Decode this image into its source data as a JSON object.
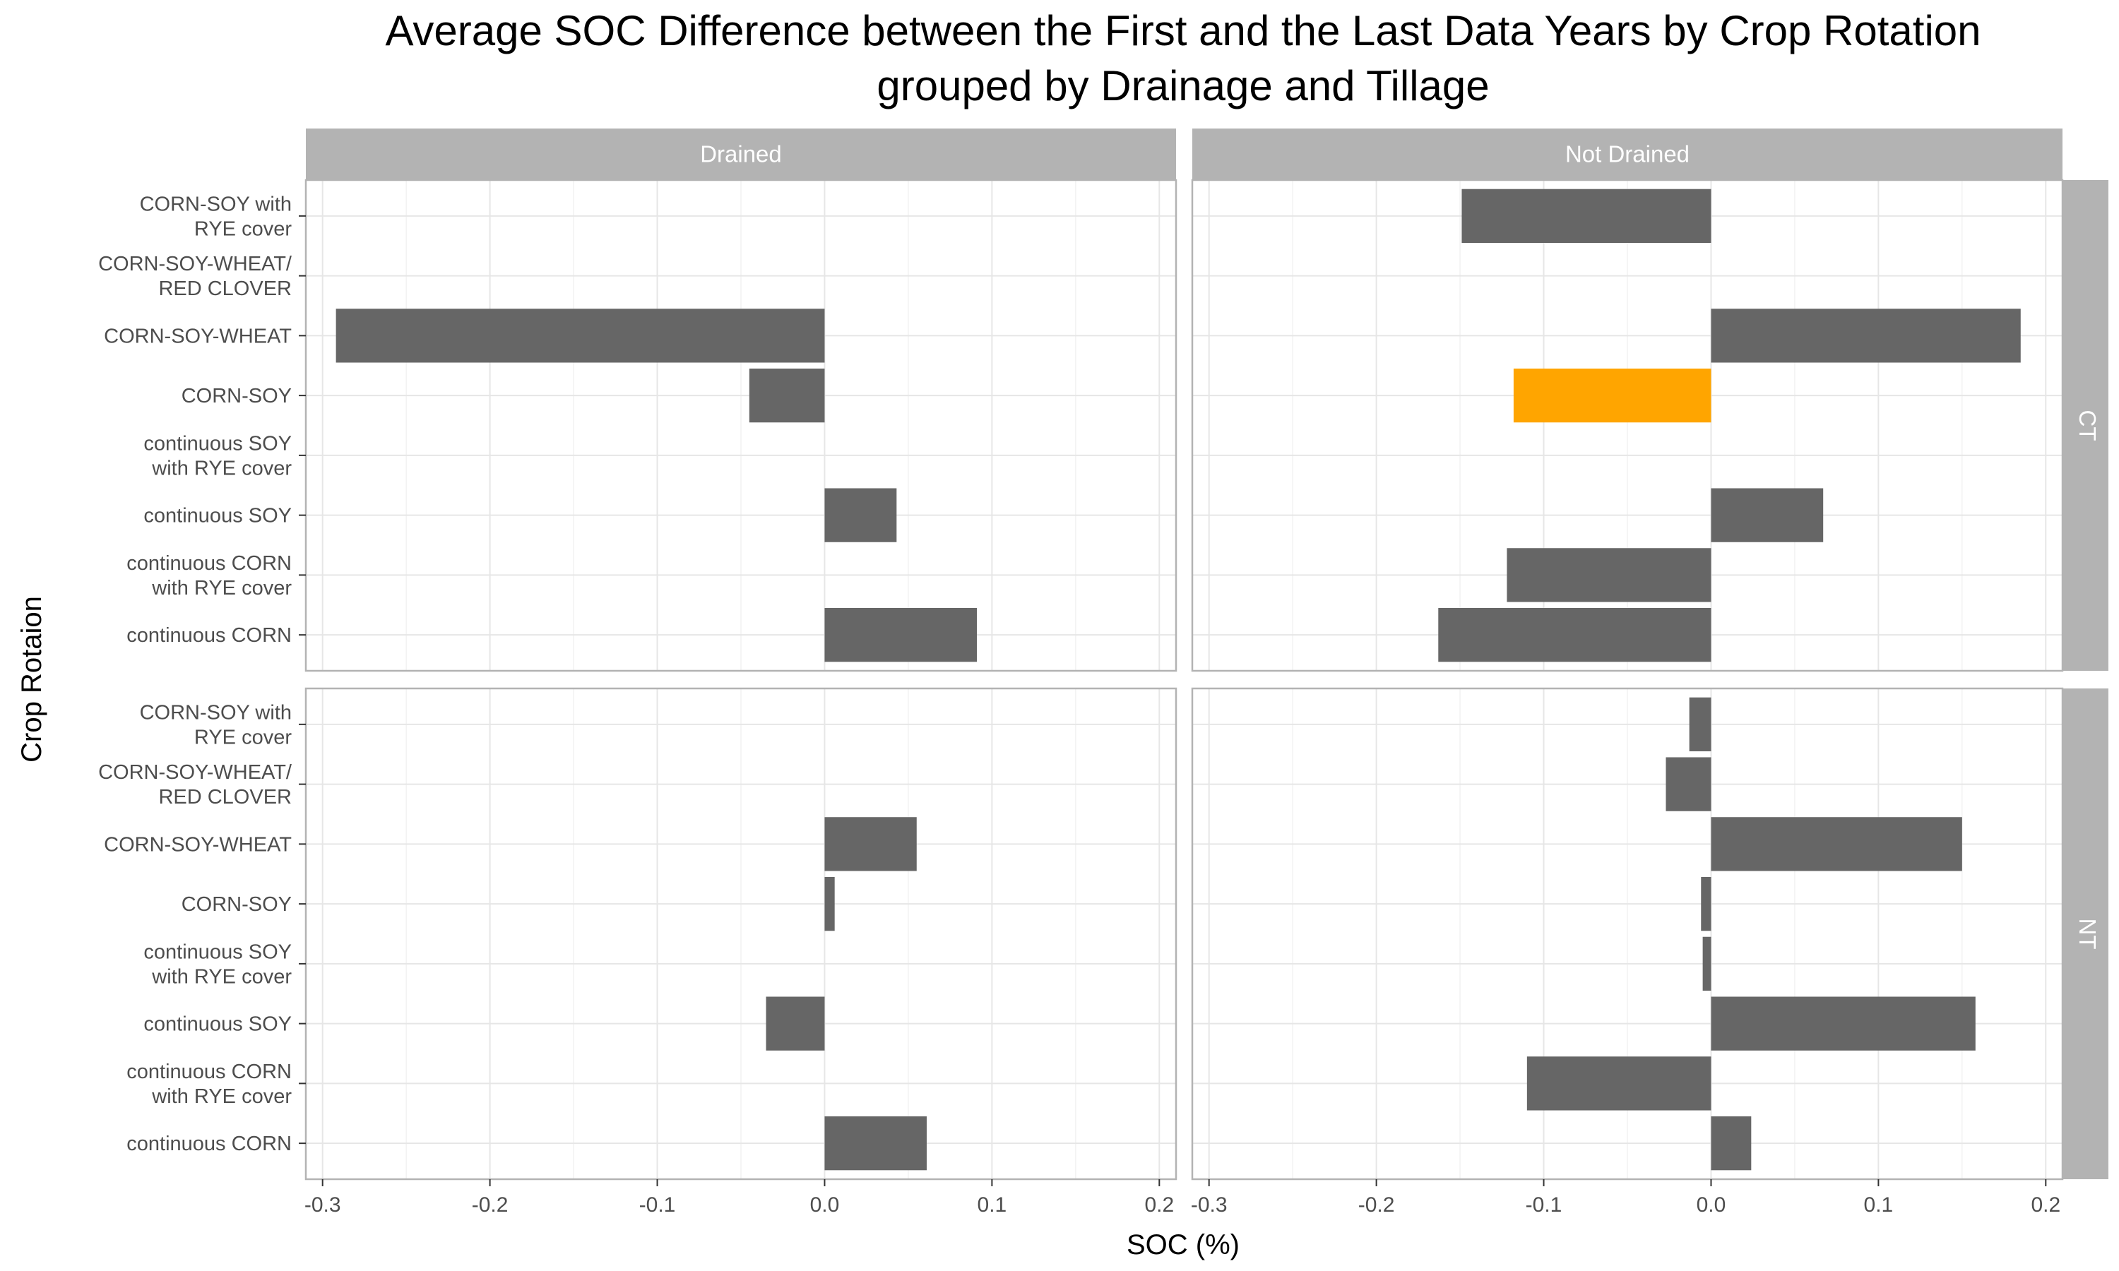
{
  "chart_data": {
    "type": "bar",
    "orientation": "horizontal",
    "title": "Average SOC Difference between the First and the Last Data Years by Crop Rotation",
    "subtitle": "grouped by Drainage and Tillage",
    "xlabel": "SOC (%)",
    "ylabel": "Crop Rotaion",
    "xlim": [
      -0.31,
      0.21
    ],
    "xticks": [
      -0.3,
      -0.2,
      -0.1,
      0.0,
      0.1,
      0.2
    ],
    "xtick_labels": [
      "-0.3",
      "-0.2",
      "-0.1",
      "0.0",
      "0.1",
      "0.2"
    ],
    "categories": [
      "CORN-SOY with\nRYE cover",
      "CORN-SOY-WHEAT/\nRED CLOVER",
      "CORN-SOY-WHEAT",
      "CORN-SOY",
      "continuous SOY\nwith RYE cover",
      "continuous SOY",
      "continuous CORN\nwith RYE cover",
      "continuous CORN"
    ],
    "column_facets": [
      "Drained",
      "Not Drained"
    ],
    "row_facets": [
      "CT",
      "NT"
    ],
    "bar_color": "#666666",
    "highlight_color": "#FFA500",
    "panels": [
      {
        "column": "Drained",
        "row": "CT",
        "values": [
          null,
          null,
          -0.292,
          -0.045,
          null,
          0.043,
          null,
          0.091
        ]
      },
      {
        "column": "Not Drained",
        "row": "CT",
        "values": [
          -0.149,
          null,
          0.185,
          -0.118,
          null,
          0.067,
          -0.122,
          -0.163
        ],
        "highlight_index": 3
      },
      {
        "column": "Drained",
        "row": "NT",
        "values": [
          null,
          null,
          0.055,
          0.006,
          null,
          -0.035,
          null,
          0.061
        ]
      },
      {
        "column": "Not Drained",
        "row": "NT",
        "values": [
          -0.013,
          -0.027,
          0.15,
          -0.006,
          -0.005,
          0.158,
          -0.11,
          0.024
        ]
      }
    ]
  }
}
